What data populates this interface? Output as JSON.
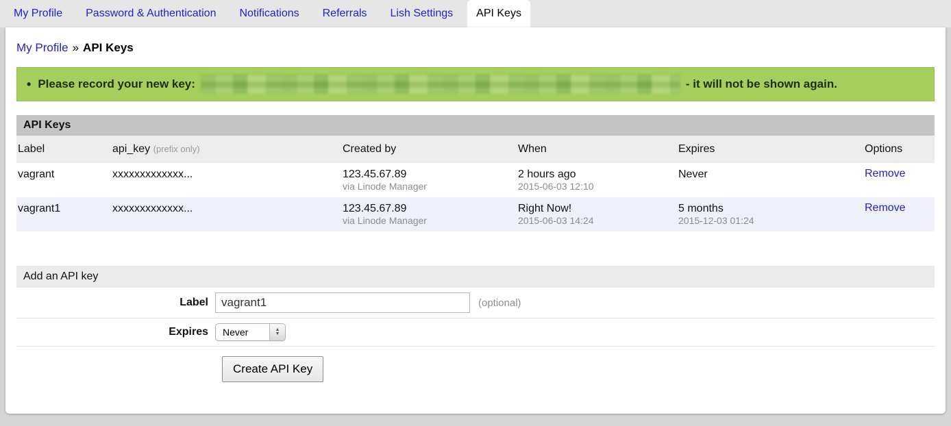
{
  "tabs": {
    "items": [
      {
        "label": "My Profile",
        "active": false
      },
      {
        "label": "Password & Authentication",
        "active": false
      },
      {
        "label": "Notifications",
        "active": false
      },
      {
        "label": "Referrals",
        "active": false
      },
      {
        "label": "Lish Settings",
        "active": false
      },
      {
        "label": "API Keys",
        "active": true
      }
    ]
  },
  "breadcrumb": {
    "parent": "My Profile",
    "separator": "»",
    "current": "API Keys"
  },
  "notice": {
    "bullet": "•",
    "prefix": "Please record your new key:",
    "suffix": "- it will not be shown again.",
    "key_redacted": true
  },
  "table": {
    "title": "API Keys",
    "headers": {
      "label": "Label",
      "api_key": "api_key",
      "api_key_note": "(prefix only)",
      "created_by": "Created by",
      "when": "When",
      "expires": "Expires",
      "options": "Options"
    },
    "rows": [
      {
        "label": "vagrant",
        "api_key": "xxxxxxxxxxxxx...",
        "created_by": "123.45.67.89",
        "created_via": "via Linode Manager",
        "when": "2 hours ago",
        "when_date": "2015-06-03 12:10",
        "expires": "Never",
        "expires_date": "",
        "action": "Remove"
      },
      {
        "label": "vagrant1",
        "api_key": "xxxxxxxxxxxxx...",
        "created_by": "123.45.67.89",
        "created_via": "via Linode Manager",
        "when": "Right Now!",
        "when_date": "2015-06-03 14:24",
        "expires": "5 months",
        "expires_date": "2015-12-03 01:24",
        "action": "Remove"
      }
    ]
  },
  "form": {
    "title": "Add an API key",
    "label_field": {
      "label": "Label",
      "value": "vagrant1",
      "note": "(optional)"
    },
    "expires_field": {
      "label": "Expires",
      "value": "Never"
    },
    "submit_label": "Create API Key"
  },
  "colors": {
    "notice_green": "#a5cf5c",
    "link_blue": "#2421c8",
    "table_title_gray": "#c5c5c5",
    "alt_row": "#eef0fa"
  }
}
